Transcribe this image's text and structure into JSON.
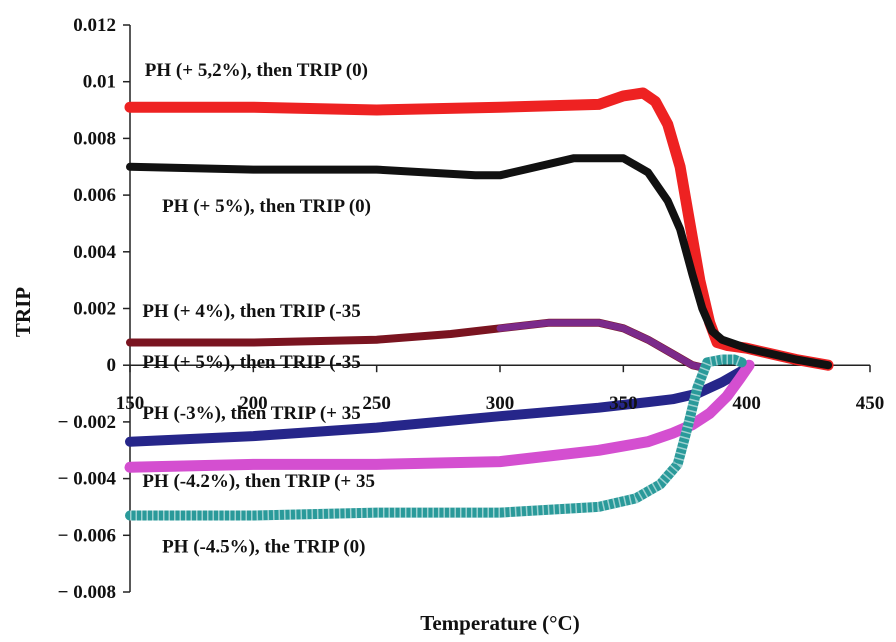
{
  "chart_data": {
    "type": "line",
    "title": "",
    "xlabel": "Temperature (°C)",
    "ylabel": "TRIP",
    "xlim": [
      150,
      450
    ],
    "ylim": [
      -0.008,
      0.012
    ],
    "x_ticks": [
      150,
      200,
      250,
      300,
      350,
      400,
      450
    ],
    "x_tick_labels": [
      "150",
      "200",
      "250",
      "300",
      "350",
      "400",
      "450"
    ],
    "y_ticks": [
      0.012,
      0.01,
      0.008,
      0.006,
      0.004,
      0.002,
      0,
      -0.002,
      -0.004,
      -0.006,
      -0.008
    ],
    "y_tick_labels": [
      "0.012",
      "0.01",
      "0.008",
      "0.006",
      "0.004",
      "0.002",
      "0",
      "− 0.002",
      "− 0.004",
      "− 0.006",
      "− 0.008"
    ],
    "x_axis_crosses_at": 0,
    "grid": false,
    "legend": "none",
    "annotations": [
      {
        "text": "PH (+ 5,2%), then TRIP (0)",
        "x": 156,
        "y": 0.0102
      },
      {
        "text": "PH (+ 5%), then TRIP (0)",
        "x": 163,
        "y": 0.0054
      },
      {
        "text": "PH (+ 4%), then TRIP (-35",
        "x": 155,
        "y": 0.0017
      },
      {
        "text": "PH (+ 5%), then TRIP (-35",
        "x": 155,
        "y": -0.0001
      },
      {
        "text": "PH (-3%), then TRIP (+ 35",
        "x": 155,
        "y": -0.0019
      },
      {
        "text": "PH (-4.2%), then TRIP (+ 35",
        "x": 155,
        "y": -0.0043
      },
      {
        "text": "PH (-4.5%), the TRIP (0)",
        "x": 163,
        "y": -0.0066
      }
    ],
    "series": [
      {
        "color": "#ee2222",
        "line_width": 11,
        "style": "solid",
        "x": [
          150,
          200,
          250,
          300,
          340,
          350,
          358,
          363,
          368,
          373,
          377,
          381,
          385,
          388,
          392,
          400,
          410,
          420,
          433
        ],
        "y": [
          0.0091,
          0.0091,
          0.009,
          0.0091,
          0.0092,
          0.0095,
          0.0096,
          0.0093,
          0.0085,
          0.007,
          0.005,
          0.003,
          0.0015,
          0.0008,
          0.0007,
          0.0006,
          0.0004,
          0.0002,
          0.0
        ]
      },
      {
        "color": "#111111",
        "line_width": 8,
        "style": "solid",
        "x": [
          150,
          200,
          250,
          290,
          300,
          310,
          330,
          350,
          360,
          368,
          373,
          378,
          382,
          386,
          390,
          400,
          410,
          420,
          433
        ],
        "y": [
          0.007,
          0.0069,
          0.0069,
          0.0067,
          0.0067,
          0.0069,
          0.0073,
          0.0073,
          0.0068,
          0.0058,
          0.0048,
          0.0032,
          0.002,
          0.0012,
          0.0009,
          0.0006,
          0.0004,
          0.0002,
          0.0
        ]
      },
      {
        "color": "#7a1420",
        "line_width": 8,
        "style": "solid",
        "x": [
          150,
          200,
          250,
          280,
          300,
          320,
          340,
          350,
          360,
          370,
          378,
          383
        ],
        "y": [
          0.0008,
          0.0008,
          0.0009,
          0.0011,
          0.0013,
          0.0015,
          0.0015,
          0.0013,
          0.0009,
          0.0004,
          0.0,
          -0.0001
        ]
      },
      {
        "color": "#7b2a8a",
        "line_width": 7,
        "style": "solid",
        "x": [
          300,
          320,
          340,
          350,
          360,
          370,
          378,
          383
        ],
        "y": [
          0.0013,
          0.0015,
          0.0015,
          0.0013,
          0.0009,
          0.0004,
          0.0,
          -0.0001
        ]
      },
      {
        "color": "#26268a",
        "line_width": 10,
        "style": "solid",
        "x": [
          150,
          200,
          250,
          300,
          340,
          360,
          370,
          380,
          390,
          398
        ],
        "y": [
          -0.0027,
          -0.0025,
          -0.0022,
          -0.0018,
          -0.0015,
          -0.0013,
          -0.0012,
          -0.001,
          -0.0006,
          -0.0002
        ]
      },
      {
        "color": "#d44fd0",
        "line_width": 11,
        "style": "solid",
        "x": [
          150,
          200,
          250,
          300,
          340,
          360,
          370,
          378,
          385,
          392,
          397,
          401
        ],
        "y": [
          -0.0036,
          -0.0035,
          -0.0035,
          -0.0034,
          -0.003,
          -0.0027,
          -0.0024,
          -0.0021,
          -0.0017,
          -0.0011,
          -0.0005,
          0.0
        ]
      },
      {
        "color": "#2a9a9a",
        "line_width": 10,
        "style": "hatched",
        "x": [
          150,
          200,
          250,
          300,
          340,
          355,
          365,
          372,
          376,
          380,
          384,
          390,
          395,
          398
        ],
        "y": [
          -0.0053,
          -0.0053,
          -0.0052,
          -0.0052,
          -0.005,
          -0.0047,
          -0.0042,
          -0.0035,
          -0.0022,
          -0.0008,
          0.0001,
          0.0002,
          0.0002,
          0.0001
        ]
      }
    ]
  }
}
